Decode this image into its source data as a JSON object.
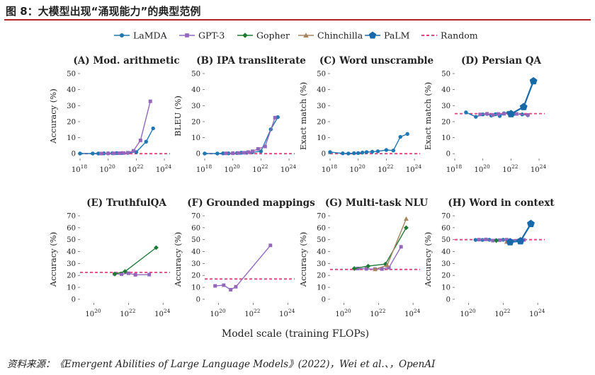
{
  "figure_title": "图 8：大模型出现“涌现能力”的典型范例",
  "source_note": "资料来源：《Emergent Abilities of Large Language Models》(2022)，Wei et al.、，OpenAI",
  "colors": {
    "LaMDA": "#1f77b4",
    "GPT-3": "#9467bd",
    "Gopher": "#1e7b34",
    "Chinchilla": "#a8845e",
    "PaLM": "#1769aa",
    "Random": "#e0427a",
    "accent_rule": "#b22222"
  },
  "legend": [
    {
      "name": "LaMDA",
      "marker": "circle"
    },
    {
      "name": "GPT-3",
      "marker": "square"
    },
    {
      "name": "Gopher",
      "marker": "diamond"
    },
    {
      "name": "Chinchilla",
      "marker": "triangle"
    },
    {
      "name": "PaLM",
      "marker": "pentagon"
    },
    {
      "name": "Random",
      "marker": "dashed-line"
    }
  ],
  "shared_xlabel": "Model scale (training FLOPs)",
  "chart_data": [
    {
      "type": "line",
      "panel": "A",
      "title": "(A) Mod. arithmetic",
      "ylabel": "Accuracy (%)",
      "x_scale": "log10",
      "xlim": [
        18,
        24.4
      ],
      "xticks": [
        18,
        20,
        22,
        24
      ],
      "ylim": [
        -3,
        50
      ],
      "yticks": [
        0,
        10,
        20,
        30,
        40,
        50
      ],
      "random_baseline": 0,
      "series": [
        {
          "name": "LaMDA",
          "x": [
            18.0,
            18.9,
            19.3,
            19.7,
            20.0,
            20.3,
            20.6,
            21.0,
            21.4,
            22.0,
            22.7,
            23.2
          ],
          "y": [
            0.1,
            0.1,
            0.1,
            0.2,
            0.2,
            0.3,
            0.4,
            0.4,
            0.5,
            1.0,
            7.5,
            15.8
          ]
        },
        {
          "name": "GPT-3",
          "x": [
            19.5,
            20.0,
            20.4,
            20.8,
            21.1,
            21.4,
            21.8,
            22.3,
            23.0
          ],
          "y": [
            0.1,
            0.2,
            0.2,
            0.3,
            0.4,
            0.6,
            1.8,
            8.3,
            32.7
          ]
        }
      ]
    },
    {
      "type": "line",
      "panel": "B",
      "title": "(B) IPA transliterate",
      "ylabel": "BLEU (%)",
      "x_scale": "log10",
      "xlim": [
        18,
        24.4
      ],
      "xticks": [
        18,
        20,
        22,
        24
      ],
      "ylim": [
        -3,
        50
      ],
      "yticks": [
        0,
        10,
        20,
        30,
        40,
        50
      ],
      "random_baseline": 0,
      "series": [
        {
          "name": "LaMDA",
          "x": [
            18.0,
            18.9,
            19.3,
            19.7,
            20.0,
            20.3,
            20.6,
            21.0,
            21.4,
            22.0,
            22.7,
            23.2
          ],
          "y": [
            0.1,
            0.1,
            0.2,
            0.2,
            0.3,
            0.4,
            0.6,
            0.6,
            0.9,
            1.5,
            15.2,
            22.8
          ]
        },
        {
          "name": "GPT-3",
          "x": [
            19.5,
            20.0,
            20.4,
            20.8,
            21.1,
            21.4,
            21.8,
            22.3,
            23.0
          ],
          "y": [
            0.2,
            0.3,
            0.4,
            0.6,
            1.0,
            1.5,
            3.0,
            4.5,
            22.5
          ]
        }
      ]
    },
    {
      "type": "line",
      "panel": "C",
      "title": "(C) Word unscramble",
      "ylabel": "Exact match (%)",
      "x_scale": "log10",
      "xlim": [
        18,
        24.4
      ],
      "xticks": [
        18,
        20,
        22,
        24
      ],
      "ylim": [
        -3,
        50
      ],
      "yticks": [
        0,
        10,
        20,
        30,
        40,
        50
      ],
      "random_baseline": 0,
      "series": [
        {
          "name": "LaMDA",
          "x": [
            18.0,
            18.9,
            19.3,
            19.7,
            20.0,
            20.3,
            20.6,
            21.0,
            21.4,
            22.0,
            22.5,
            23.0,
            23.5
          ],
          "y": [
            1.0,
            0.2,
            0.1,
            0.3,
            0.4,
            0.7,
            1.0,
            1.2,
            1.5,
            2.3,
            2.0,
            10.5,
            12.3
          ]
        }
      ]
    },
    {
      "type": "line",
      "panel": "D",
      "title": "(D) Persian QA",
      "ylabel": "Exact match (%)",
      "x_scale": "log10",
      "xlim": [
        18,
        24.4
      ],
      "xticks": [
        18,
        20,
        22,
        24
      ],
      "ylim": [
        -3,
        50
      ],
      "yticks": [
        0,
        10,
        20,
        30,
        40,
        50
      ],
      "random_baseline": 25,
      "series": [
        {
          "name": "LaMDA",
          "x": [
            18.8,
            19.5,
            20.0,
            20.3,
            20.6,
            20.9,
            21.2,
            21.5,
            21.8,
            22.2,
            22.8,
            23.2
          ],
          "y": [
            25.8,
            23.0,
            24.5,
            24.8,
            23.8,
            24.6,
            23.5,
            25.2,
            25.5,
            24.8,
            24.5,
            24.0
          ]
        },
        {
          "name": "GPT-3",
          "x": [
            19.8,
            20.3,
            20.7,
            21.1,
            21.5,
            21.9,
            22.4,
            23.2
          ],
          "y": [
            24.5,
            24.9,
            24.2,
            24.8,
            24.9,
            25.1,
            24.8,
            24.2
          ]
        },
        {
          "name": "PaLM",
          "x": [
            22.0,
            22.9,
            23.6
          ],
          "y": [
            24.8,
            29.2,
            45.3
          ]
        }
      ]
    },
    {
      "type": "line",
      "panel": "E",
      "title": "(E) TruthfulQA",
      "ylabel": "Accuracy (%)",
      "x_scale": "log10",
      "xlim": [
        19.2,
        24.4
      ],
      "xticks": [
        20,
        22,
        24
      ],
      "ylim": [
        -3,
        70
      ],
      "yticks": [
        0,
        10,
        20,
        30,
        40,
        50,
        60,
        70
      ],
      "random_baseline": 22.5,
      "series": [
        {
          "name": "GPT-3",
          "x": [
            21.2,
            21.6,
            22.0,
            22.4,
            23.2
          ],
          "y": [
            21.2,
            21.0,
            21.8,
            20.5,
            20.7
          ]
        },
        {
          "name": "Gopher",
          "x": [
            21.2,
            21.8,
            23.6
          ],
          "y": [
            21.2,
            23.3,
            43.3
          ]
        }
      ]
    },
    {
      "type": "line",
      "panel": "F",
      "title": "(F) Grounded mappings",
      "ylabel": "Accuracy (%)",
      "x_scale": "log10",
      "xlim": [
        19.2,
        24.4
      ],
      "xticks": [
        20,
        22,
        24
      ],
      "ylim": [
        -3,
        70
      ],
      "yticks": [
        0,
        10,
        20,
        30,
        40,
        50,
        60,
        70
      ],
      "random_baseline": 17,
      "series": [
        {
          "name": "GPT-3",
          "x": [
            19.8,
            20.3,
            20.7,
            21.0,
            23.0
          ],
          "y": [
            11.2,
            11.8,
            8.0,
            10.5,
            45.2
          ]
        }
      ]
    },
    {
      "type": "line",
      "panel": "G",
      "title": "(G) Multi-task NLU",
      "ylabel": "Accuracy (%)",
      "x_scale": "log10",
      "xlim": [
        19.2,
        24.4
      ],
      "xticks": [
        20,
        22,
        24
      ],
      "ylim": [
        -3,
        70
      ],
      "yticks": [
        0,
        10,
        20,
        30,
        40,
        50,
        60,
        70
      ],
      "random_baseline": 25,
      "series": [
        {
          "name": "GPT-3",
          "x": [
            20.8,
            21.3,
            21.8,
            22.2,
            22.6,
            23.3
          ],
          "y": [
            25.8,
            25.5,
            25.3,
            25.4,
            26.5,
            44.0
          ]
        },
        {
          "name": "Gopher",
          "x": [
            20.6,
            21.4,
            22.4,
            23.6
          ],
          "y": [
            25.8,
            27.8,
            29.5,
            60.0
          ]
        },
        {
          "name": "Chinchilla",
          "x": [
            21.8,
            22.5,
            23.6
          ],
          "y": [
            25.2,
            28.5,
            67.5
          ]
        }
      ]
    },
    {
      "type": "line",
      "panel": "H",
      "title": "(H) Word in context",
      "ylabel": "Accuracy (%)",
      "x_scale": "log10",
      "xlim": [
        19.2,
        24.4
      ],
      "xticks": [
        20,
        22,
        24
      ],
      "ylim": [
        -3,
        70
      ],
      "yticks": [
        0,
        10,
        20,
        30,
        40,
        50,
        60,
        70
      ],
      "random_baseline": 50,
      "series": [
        {
          "name": "LaMDA",
          "x": [
            20.4,
            20.8,
            21.2,
            21.6,
            22.0,
            22.4,
            22.9
          ],
          "y": [
            49.8,
            49.8,
            49.9,
            49.5,
            49.9,
            49.6,
            49.5
          ]
        },
        {
          "name": "GPT-3",
          "x": [
            20.6,
            21.0,
            21.4,
            21.8,
            22.2,
            23.2
          ],
          "y": [
            50.0,
            50.2,
            49.2,
            49.6,
            50.0,
            49.8
          ]
        },
        {
          "name": "Chinchilla",
          "x": [
            22.2
          ],
          "y": [
            48.2
          ]
        },
        {
          "name": "Gopher",
          "x": [
            21.6
          ],
          "y": [
            49.2
          ]
        },
        {
          "name": "PaLM",
          "x": [
            22.4,
            23.0,
            23.6
          ],
          "y": [
            48.0,
            48.8,
            63.3
          ]
        }
      ]
    }
  ]
}
